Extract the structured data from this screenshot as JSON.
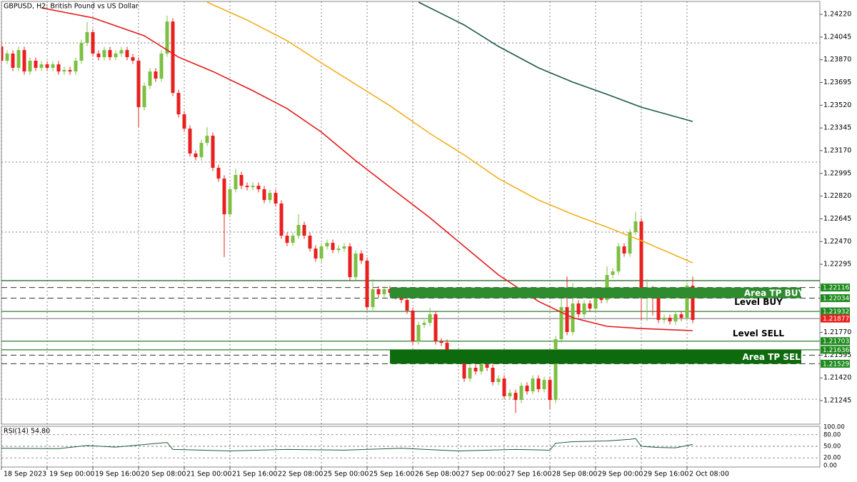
{
  "chart_data": {
    "type": "candlestick",
    "title": "GBPUSD, H2:  British Pound vs US Dollar",
    "up_color": "#7cc043",
    "down_color": "#e8201f",
    "xlim": [
      0,
      143.5
    ],
    "xticks": [
      {
        "value": 0,
        "label": "18 Sep 2023"
      },
      {
        "value": 8,
        "label": "19 Sep 00:00"
      },
      {
        "value": 16,
        "label": "19 Sep 16:00"
      },
      {
        "value": 24,
        "label": "20 Sep 08:00"
      },
      {
        "value": 32,
        "label": "21 Sep 00:00"
      },
      {
        "value": 40,
        "label": "21 Sep 16:00"
      },
      {
        "value": 48,
        "label": "22 Sep 08:00"
      },
      {
        "value": 56,
        "label": "25 Sep 00:00"
      },
      {
        "value": 64,
        "label": "25 Sep 16:00"
      },
      {
        "value": 72,
        "label": "26 Sep 08:00"
      },
      {
        "value": 80,
        "label": "27 Sep 00:00"
      },
      {
        "value": 88,
        "label": "27 Sep 16:00"
      },
      {
        "value": 96,
        "label": "28 Sep 08:00"
      },
      {
        "value": 104,
        "label": "29 Sep 00:00"
      },
      {
        "value": 112,
        "label": "29 Sep 16:00"
      },
      {
        "value": 120,
        "label": "2 Oct 08:00"
      }
    ],
    "ylim": [
      1.21058,
      1.24314
    ],
    "yticks": [
      {
        "value": 1.2422,
        "label": "1.24220"
      },
      1.24045,
      {
        "value": 1.2387,
        "label": "1.23870"
      },
      1.23695,
      {
        "value": 1.2352,
        "label": "1.23520"
      },
      1.23345,
      {
        "value": 1.2317,
        "label": "1.23170"
      },
      1.22995,
      {
        "value": 1.2282,
        "label": "1.22820"
      },
      1.22645,
      {
        "value": 1.2247,
        "label": "1.22470"
      },
      1.22295,
      {
        "value": 1.2177,
        "label": "1.21770"
      },
      1.21595,
      {
        "value": 1.2142,
        "label": "1.21420"
      },
      1.21245
    ],
    "hgrid": [
      1.24,
      1.23082,
      1.22543,
      1.21256
    ],
    "candles": [
      [
        1.23973,
        1.23998,
        1.23838,
        1.23863
      ],
      [
        1.23863,
        1.23943,
        1.23838,
        1.23918
      ],
      [
        1.23918,
        1.23943,
        1.23783,
        1.23808
      ],
      [
        1.23808,
        1.2397,
        1.23783,
        1.23945
      ],
      [
        1.23945,
        1.2397,
        1.23755,
        1.2378
      ],
      [
        1.2378,
        1.23888,
        1.23755,
        1.23863
      ],
      [
        1.23863,
        1.23888,
        1.23783,
        1.23808
      ],
      [
        1.23808,
        1.2386,
        1.23783,
        1.23835
      ],
      [
        1.23835,
        1.2386,
        1.23783,
        1.23808
      ],
      [
        1.23808,
        1.2386,
        1.23783,
        1.23835
      ],
      [
        1.23835,
        1.2386,
        1.23755,
        1.2378
      ],
      [
        1.2378,
        1.23816,
        1.23755,
        1.23791
      ],
      [
        1.23791,
        1.23816,
        1.23755,
        1.2378
      ],
      [
        1.2378,
        1.23888,
        1.23755,
        1.23863
      ],
      [
        1.23863,
        1.24025,
        1.23838,
        1.24
      ],
      [
        1.24,
        1.2416,
        1.23975,
        1.24083
      ],
      [
        1.24083,
        1.24108,
        1.23893,
        1.23918
      ],
      [
        1.23918,
        1.23943,
        1.23865,
        1.2389
      ],
      [
        1.2389,
        1.2397,
        1.23865,
        1.23945
      ],
      [
        1.23945,
        1.2397,
        1.23865,
        1.2389
      ],
      [
        1.2389,
        1.23943,
        1.23865,
        1.23918
      ],
      [
        1.23918,
        1.2397,
        1.23893,
        1.23945
      ],
      [
        1.23945,
        1.2397,
        1.23865,
        1.2389
      ],
      [
        1.2389,
        1.23915,
        1.23838,
        1.23863
      ],
      [
        1.23863,
        1.23888,
        1.2335,
        1.23505
      ],
      [
        1.23505,
        1.23695,
        1.2348,
        1.2367
      ],
      [
        1.2367,
        1.23805,
        1.23645,
        1.2378
      ],
      [
        1.2378,
        1.23805,
        1.237,
        1.23725
      ],
      [
        1.23725,
        1.23943,
        1.237,
        1.23918
      ],
      [
        1.23918,
        1.2421,
        1.23893,
        1.24165
      ],
      [
        1.24165,
        1.2419,
        1.2359,
        1.23615
      ],
      [
        1.23615,
        1.2364,
        1.23425,
        1.2345
      ],
      [
        1.2345,
        1.23475,
        1.23315,
        1.2334
      ],
      [
        1.2334,
        1.23365,
        1.23123,
        1.23148
      ],
      [
        1.23148,
        1.23173,
        1.23095,
        1.2312
      ],
      [
        1.2312,
        1.23255,
        1.23095,
        1.2323
      ],
      [
        1.2323,
        1.2335,
        1.23205,
        1.23285
      ],
      [
        1.23285,
        1.2331,
        1.23013,
        1.23038
      ],
      [
        1.23038,
        1.23063,
        1.2293,
        1.22955
      ],
      [
        1.22955,
        1.2298,
        1.2235,
        1.2268
      ],
      [
        1.2268,
        1.22898,
        1.22655,
        1.22873
      ],
      [
        1.22873,
        1.2303,
        1.22848,
        1.22983
      ],
      [
        1.22983,
        1.23008,
        1.22875,
        1.229
      ],
      [
        1.229,
        1.22925,
        1.22864,
        1.22889
      ],
      [
        1.22889,
        1.22925,
        1.22864,
        1.229
      ],
      [
        1.229,
        1.22925,
        1.22848,
        1.22873
      ],
      [
        1.22873,
        1.22898,
        1.22765,
        1.2279
      ],
      [
        1.2279,
        1.2287,
        1.22765,
        1.22845
      ],
      [
        1.22845,
        1.2287,
        1.22738,
        1.22763
      ],
      [
        1.22763,
        1.22788,
        1.2249,
        1.22515
      ],
      [
        1.22515,
        1.2254,
        1.22435,
        1.2246
      ],
      [
        1.2246,
        1.2254,
        1.22435,
        1.22515
      ],
      [
        1.22515,
        1.2268,
        1.2249,
        1.22598
      ],
      [
        1.22598,
        1.22623,
        1.2249,
        1.22515
      ],
      [
        1.22515,
        1.2254,
        1.22391,
        1.22416
      ],
      [
        1.22416,
        1.22441,
        1.22314,
        1.22339
      ],
      [
        1.22339,
        1.22458,
        1.22314,
        1.22433
      ],
      [
        1.22433,
        1.22485,
        1.22408,
        1.2246
      ],
      [
        1.2246,
        1.22485,
        1.2238,
        1.22405
      ],
      [
        1.22405,
        1.22441,
        1.2238,
        1.22416
      ],
      [
        1.22416,
        1.22458,
        1.22391,
        1.22433
      ],
      [
        1.22433,
        1.22458,
        1.22171,
        1.22196
      ],
      [
        1.22196,
        1.22403,
        1.22171,
        1.22378
      ],
      [
        1.22378,
        1.22403,
        1.22298,
        1.22323
      ],
      [
        1.22323,
        1.22348,
        1.2194,
        1.21965
      ],
      [
        1.21965,
        1.2218,
        1.2194,
        1.22103
      ],
      [
        1.22103,
        1.22128,
        1.22039,
        1.22064
      ],
      [
        1.22064,
        1.22128,
        1.22039,
        1.22103
      ],
      [
        1.22103,
        1.22128,
        1.2205,
        1.22075
      ],
      [
        1.22075,
        1.221,
        1.22023,
        1.22048
      ],
      [
        1.22048,
        1.22073,
        1.21995,
        1.2202
      ],
      [
        1.2202,
        1.22045,
        1.21913,
        1.21938
      ],
      [
        1.21938,
        1.21963,
        1.21676,
        1.21701
      ],
      [
        1.21701,
        1.21853,
        1.21676,
        1.21828
      ],
      [
        1.21828,
        1.21869,
        1.21803,
        1.21844
      ],
      [
        1.21844,
        1.2196,
        1.21819,
        1.2191
      ],
      [
        1.2191,
        1.21935,
        1.21676,
        1.21701
      ],
      [
        1.21701,
        1.21726,
        1.21665,
        1.2169
      ],
      [
        1.2169,
        1.21715,
        1.21555,
        1.2158
      ],
      [
        1.2158,
        1.21605,
        1.21528,
        1.21553
      ],
      [
        1.21553,
        1.21605,
        1.21528,
        1.2158
      ],
      [
        1.2158,
        1.21605,
        1.2139,
        1.21415
      ],
      [
        1.21415,
        1.21523,
        1.2139,
        1.21498
      ],
      [
        1.21498,
        1.21523,
        1.21445,
        1.2147
      ],
      [
        1.2147,
        1.2162,
        1.21445,
        1.21525
      ],
      [
        1.21525,
        1.2155,
        1.21473,
        1.21498
      ],
      [
        1.21498,
        1.21523,
        1.21363,
        1.21388
      ],
      [
        1.21388,
        1.2144,
        1.21363,
        1.21415
      ],
      [
        1.21415,
        1.2144,
        1.21253,
        1.21278
      ],
      [
        1.21278,
        1.2133,
        1.21253,
        1.21305
      ],
      [
        1.21305,
        1.2133,
        1.2115,
        1.2125
      ],
      [
        1.2125,
        1.21385,
        1.21225,
        1.2136
      ],
      [
        1.2136,
        1.21385,
        1.21291,
        1.21316
      ],
      [
        1.21316,
        1.2144,
        1.21291,
        1.21415
      ],
      [
        1.21415,
        1.2144,
        1.21308,
        1.21333
      ],
      [
        1.21333,
        1.21429,
        1.21308,
        1.21404
      ],
      [
        1.21404,
        1.21429,
        1.2118,
        1.2125
      ],
      [
        1.2125,
        1.21743,
        1.21225,
        1.21718
      ],
      [
        1.21718,
        1.2205,
        1.21693,
        1.21965
      ],
      [
        1.21965,
        1.222,
        1.21748,
        1.21773
      ],
      [
        1.21773,
        1.2215,
        1.21748,
        1.21993
      ],
      [
        1.21993,
        1.22018,
        1.21885,
        1.2191
      ],
      [
        1.2191,
        1.22018,
        1.21885,
        1.21993
      ],
      [
        1.21993,
        1.22018,
        1.21929,
        1.21954
      ],
      [
        1.21954,
        1.221,
        1.21929,
        1.22075
      ],
      [
        1.22075,
        1.221,
        1.21995,
        1.2202
      ],
      [
        1.2202,
        1.2228,
        1.21995,
        1.22213
      ],
      [
        1.22213,
        1.22265,
        1.22188,
        1.2224
      ],
      [
        1.2224,
        1.22458,
        1.22215,
        1.22433
      ],
      [
        1.22433,
        1.22458,
        1.22353,
        1.22378
      ],
      [
        1.22378,
        1.22568,
        1.22353,
        1.22543
      ],
      [
        1.22543,
        1.227,
        1.22518,
        1.22625
      ],
      [
        1.22625,
        1.2265,
        1.2186,
        1.22075
      ],
      [
        1.22075,
        1.2218,
        1.2186,
        1.22103
      ],
      [
        1.22103,
        1.22128,
        1.219,
        1.22048
      ],
      [
        1.22048,
        1.22073,
        1.21841,
        1.21866
      ],
      [
        1.21866,
        1.21908,
        1.21841,
        1.21883
      ],
      [
        1.21883,
        1.21908,
        1.2183,
        1.21855
      ],
      [
        1.21855,
        1.21935,
        1.2183,
        1.2191
      ],
      [
        1.2191,
        1.21935,
        1.21858,
        1.21883
      ],
      [
        1.21883,
        1.22155,
        1.21858,
        1.2213
      ],
      [
        1.2213,
        1.222,
        1.21841,
        1.21866
      ]
    ],
    "ma_lines": [
      {
        "color": "#e31b1b",
        "x": [
          7,
          16,
          25,
          31,
          37,
          44,
          50,
          56,
          62,
          68,
          75,
          81,
          87,
          94,
          100,
          106,
          112,
          118,
          121
        ],
        "values": [
          1.2427,
          1.24193,
          1.24055,
          1.2389,
          1.2378,
          1.23632,
          1.23494,
          1.23313,
          1.23093,
          1.22889,
          1.22653,
          1.22433,
          1.22213,
          1.22009,
          1.21883,
          1.21817,
          1.218,
          1.21789,
          1.21784
        ]
      },
      {
        "color": "#f2b01e",
        "x": [
          36,
          43,
          50,
          56,
          62,
          68,
          75,
          81,
          87,
          94,
          100,
          106,
          112,
          121
        ],
        "values": [
          1.24314,
          1.24176,
          1.24017,
          1.23846,
          1.23681,
          1.23516,
          1.23302,
          1.23137,
          1.22955,
          1.2279,
          1.2268,
          1.22581,
          1.22477,
          1.22306
        ]
      },
      {
        "color": "#1d5a4a",
        "x": [
          73,
          81,
          87,
          94,
          100,
          106,
          112,
          121
        ],
        "values": [
          1.24314,
          1.24138,
          1.23973,
          1.23808,
          1.23698,
          1.23604,
          1.23505,
          1.23395
        ]
      }
    ],
    "levels": [
      {
        "value": 1.22169,
        "style": "solid",
        "color": "#1a5e1a"
      },
      {
        "value": 1.22116,
        "style": "dashed",
        "color": "#333333"
      },
      {
        "value": 1.22034,
        "style": "dashed",
        "color": "#333333"
      },
      {
        "value": 1.21932,
        "style": "solid",
        "color": "#2e7d2e"
      },
      {
        "value": 1.21877,
        "style": "solid",
        "color": "#8a8a8a"
      },
      {
        "value": 1.21703,
        "style": "solid",
        "color": "#2e7d2e"
      },
      {
        "value": 1.21636,
        "style": "solid",
        "color": "#2e7d2e"
      },
      {
        "value": 1.21595,
        "style": "dashed",
        "color": "#333333"
      },
      {
        "value": 1.21529,
        "style": "dashed",
        "color": "#333333"
      }
    ],
    "zones": [
      {
        "label": "Area TP BUY",
        "from": 1.22116,
        "to": 1.22034,
        "x": [
          68,
          140
        ],
        "color": "#2e8b2e"
      },
      {
        "label": "Area TP SELL",
        "from": 1.21636,
        "to": 1.21529,
        "x": [
          68,
          140
        ],
        "color": "#0d6b0d"
      }
    ],
    "annotations": [
      {
        "text": "Level BUY",
        "value": 1.22034,
        "color": "#23962a"
      },
      {
        "text": "Level SELL",
        "value": 1.21703,
        "color": "#23962a"
      }
    ],
    "price_tags": [
      {
        "value": 1.22116,
        "color": "#1f8b1f"
      },
      {
        "value": 1.22034,
        "color": "#1f8b1f"
      },
      {
        "value": 1.21932,
        "color": "#1f8b1f"
      },
      {
        "value": 1.21877,
        "color": "#e8201f"
      },
      {
        "value": 1.21703,
        "color": "#1f8b1f"
      },
      {
        "value": 1.21636,
        "color": "#1f8b1f"
      },
      {
        "value": 1.21529,
        "color": "#1f8b1f"
      }
    ],
    "rsi": {
      "label": "RSI(14) 54.80",
      "color": "#1e5a3c",
      "ylim": [
        0,
        100
      ],
      "yticks": [
        {
          "value": 100,
          "label": "100.00"
        },
        {
          "value": 80,
          "label": "80.00"
        },
        {
          "value": 50,
          "label": "50.00"
        },
        {
          "value": 20,
          "label": "20.00"
        },
        {
          "value": 0,
          "label": "0.00"
        }
      ],
      "x": [
        0,
        10,
        15,
        20,
        29,
        30,
        40,
        50,
        60,
        70,
        80,
        90,
        96,
        97,
        100,
        106,
        110,
        111,
        112,
        115,
        118,
        121
      ],
      "values": [
        45,
        44,
        52,
        48,
        60,
        42,
        38,
        42,
        40,
        45,
        38,
        42,
        40,
        58,
        62,
        64,
        68,
        70,
        50,
        47,
        46,
        54.8
      ]
    }
  }
}
